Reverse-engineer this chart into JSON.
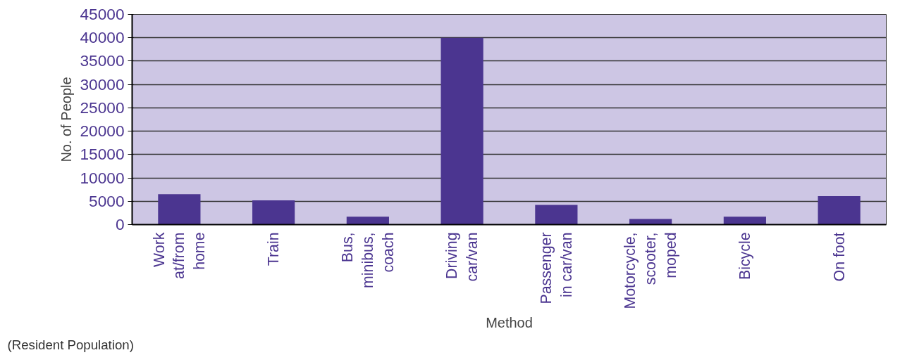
{
  "chart_data": {
    "type": "bar",
    "xlabel": "Method",
    "ylabel": "No. of People",
    "categories": [
      "Work\nat/from\nhome",
      "Train",
      "Bus,\nminibus,\ncoach",
      "Driving\ncar/van",
      "Passenger\nin car/van",
      "Motorcycle,\nscooter,\nmoped",
      "Bicycle",
      "On foot"
    ],
    "values": [
      6500,
      5200,
      1700,
      40000,
      4200,
      1200,
      1700,
      6100
    ],
    "color": "#4b3590",
    "ylim": [
      0,
      45000
    ],
    "yticks": [
      0,
      5000,
      10000,
      15000,
      20000,
      25000,
      30000,
      35000,
      40000,
      45000
    ],
    "grid": "y",
    "annotations": [
      "(Resident Population)"
    ]
  }
}
